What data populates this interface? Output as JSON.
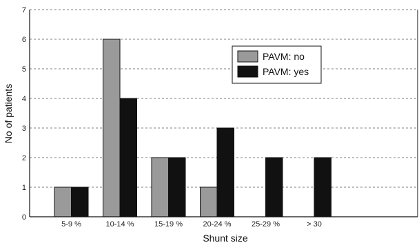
{
  "chart_data": {
    "type": "bar",
    "title": "",
    "xlabel": "Shunt size",
    "ylabel": "No of patients",
    "categories": [
      "5-9 %",
      "10-14 %",
      "15-19 %",
      "20-24 %",
      "25-29 %",
      "> 30"
    ],
    "series": [
      {
        "name": "PAVM: no",
        "values": [
          1,
          6,
          2,
          1,
          0,
          0
        ],
        "color": "#9a9a9a"
      },
      {
        "name": "PAVM: yes",
        "values": [
          1,
          4,
          2,
          3,
          2,
          2
        ],
        "color": "#111111"
      }
    ],
    "ylim": [
      0,
      7
    ],
    "yticks": [
      0,
      1,
      2,
      3,
      4,
      5,
      6,
      7
    ],
    "grid": "horizontal dashed",
    "legend_position": "upper-right"
  }
}
